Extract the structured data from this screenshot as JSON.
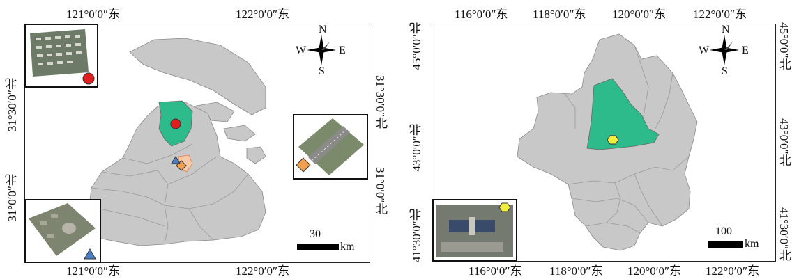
{
  "left_map": {
    "top_lon_labels": [
      "121°0′0″东",
      "122°0′0″东"
    ],
    "bottom_lon_labels": [
      "121°0′0″东",
      "122°0′0″东"
    ],
    "left_lat_labels": [
      "31°30′0″北",
      "31°0′0″北"
    ],
    "right_lat_labels": [
      "31°30′0″北",
      "31°0′0″北"
    ],
    "compass": {
      "n": "N",
      "s": "S",
      "e": "E",
      "w": "W"
    },
    "scale": {
      "value": "30",
      "unit": "km"
    },
    "colors": {
      "land": "#c8c8c8",
      "highlight": "#2dbb8c",
      "circle": "#e02020",
      "diamond": "#f0a050",
      "triangle": "#4a7fc8"
    }
  },
  "right_map": {
    "top_lon_labels": [
      "116°0′0″东",
      "118°0′0″东",
      "120°0′0″东",
      "122°0′0″东"
    ],
    "bottom_lon_labels": [
      "116°0′0″东",
      "118°0′0″东",
      "120°0′0″东",
      "122°0′0″东"
    ],
    "left_lat_labels": [
      "45°0′0″北",
      "43°0′0″北",
      "41°30′0″北"
    ],
    "right_lat_labels": [
      "45°0′0″北",
      "43°0′0″北",
      "41°30′0″北"
    ],
    "compass": {
      "n": "N",
      "s": "S",
      "e": "E",
      "w": "W"
    },
    "scale": {
      "value": "100",
      "unit": "km"
    },
    "colors": {
      "land": "#c8c8c8",
      "highlight": "#2dbb8c",
      "hexagon": "#f2ee40"
    }
  }
}
